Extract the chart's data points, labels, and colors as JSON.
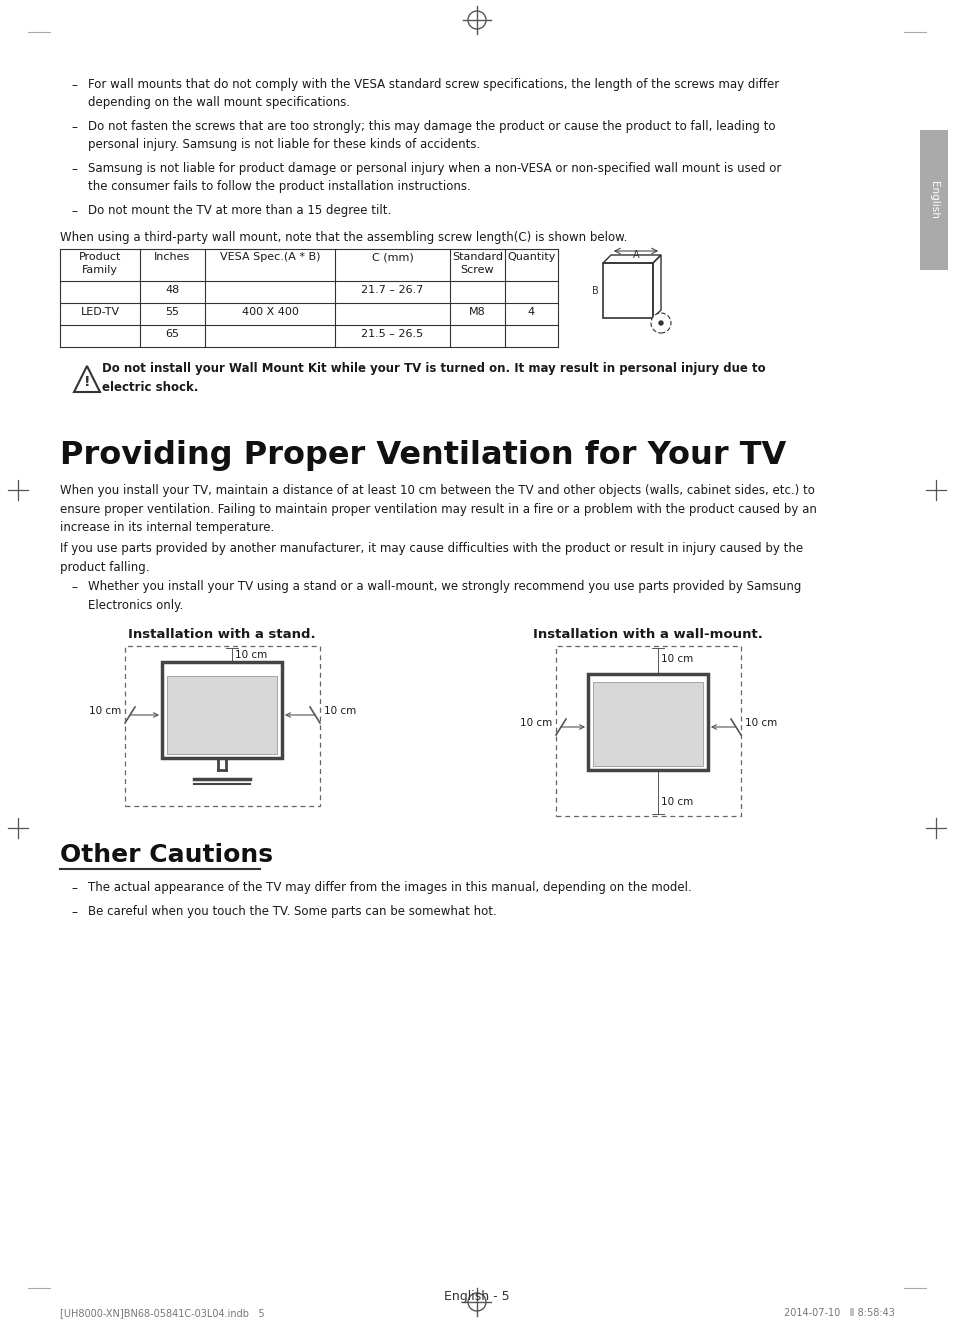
{
  "bg_color": "#ffffff",
  "text_color": "#1a1a1a",
  "bullet_items_top": [
    "For wall mounts that do not comply with the VESA standard screw specifications, the length of the screws may differ\ndepending on the wall mount specifications.",
    "Do not fasten the screws that are too strongly; this may damage the product or cause the product to fall, leading to\npersonal injury. Samsung is not liable for these kinds of accidents.",
    "Samsung is not liable for product damage or personal injury when a non-VESA or non-specified wall mount is used or\nthe consumer fails to follow the product installation instructions.",
    "Do not mount the TV at more than a 15 degree tilt."
  ],
  "table_intro": "When using a third-party wall mount, note that the assembling screw length(C) is shown below.",
  "table_headers": [
    "Product\nFamily",
    "Inches",
    "VESA Spec.(A * B)",
    "C (mm)",
    "Standard\nScrew",
    "Quantity"
  ],
  "warning_text": "Do not install your Wall Mount Kit while your TV is turned on. It may result in personal injury due to\nelectric shock.",
  "section_title": "Providing Proper Ventilation for Your TV",
  "section_para1": "When you install your TV, maintain a distance of at least 10 cm between the TV and other objects (walls, cabinet sides, etc.) to\nensure proper ventilation. Failing to maintain proper ventilation may result in a fire or a problem with the product caused by an\nincrease in its internal temperature.",
  "section_para2": "If you use parts provided by another manufacturer, it may cause difficulties with the product or result in injury caused by the\nproduct falling.",
  "section_bullet": "Whether you install your TV using a stand or a wall-mount, we strongly recommend you use parts provided by Samsung\nElectronics only.",
  "install_stand_label": "Installation with a stand.",
  "install_wall_label": "Installation with a wall-mount.",
  "other_cautions_title": "Other Cautions",
  "other_cautions_bullets": [
    "The actual appearance of the TV may differ from the images in this manual, depending on the model.",
    "Be careful when you touch the TV. Some parts can be somewhat hot."
  ],
  "footer_text": "English - 5",
  "footer_small": "[UH8000-XN]BN68-05841C-03L04.indb   5",
  "footer_date": "2014-07-10   Ⅱ 8:58:43",
  "sidebar_text": "English",
  "gray_color": "#888888",
  "dark_color": "#333333",
  "line_color": "#555555"
}
